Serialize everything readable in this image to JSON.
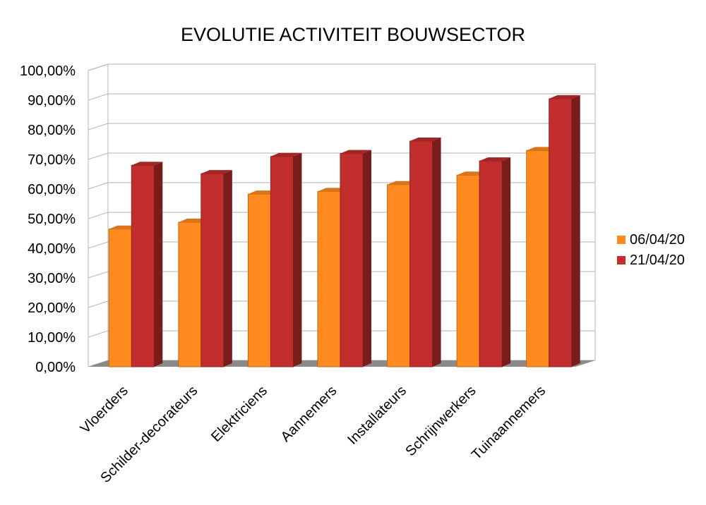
{
  "chart_data": {
    "type": "bar",
    "title": "EVOLUTIE ACTIVITEIT BOUWSECTOR",
    "categories": [
      "Vloerders",
      "Schilder-decorateurs",
      "Elektriciens",
      "Aannemers",
      "Installateurs",
      "Schrijnwerkers",
      "Tuinaannemers"
    ],
    "series": [
      {
        "name": "06/04/20",
        "values": [
          46.5,
          48.8,
          58.3,
          59.2,
          61.5,
          64.7,
          73.0
        ],
        "color": "#ff8a1f"
      },
      {
        "name": "21/04/20",
        "values": [
          68.0,
          65.2,
          71.0,
          72.0,
          76.2,
          69.5,
          90.5
        ],
        "color": "#c22d2d"
      }
    ],
    "ylim": [
      0,
      100
    ],
    "yticks": [
      "0,00%",
      "10,00%",
      "20,00%",
      "30,00%",
      "40,00%",
      "50,00%",
      "60,00%",
      "70,00%",
      "80,00%",
      "90,00%",
      "100,00%"
    ],
    "grid": true,
    "legend": "right",
    "style": "3d-bar"
  }
}
